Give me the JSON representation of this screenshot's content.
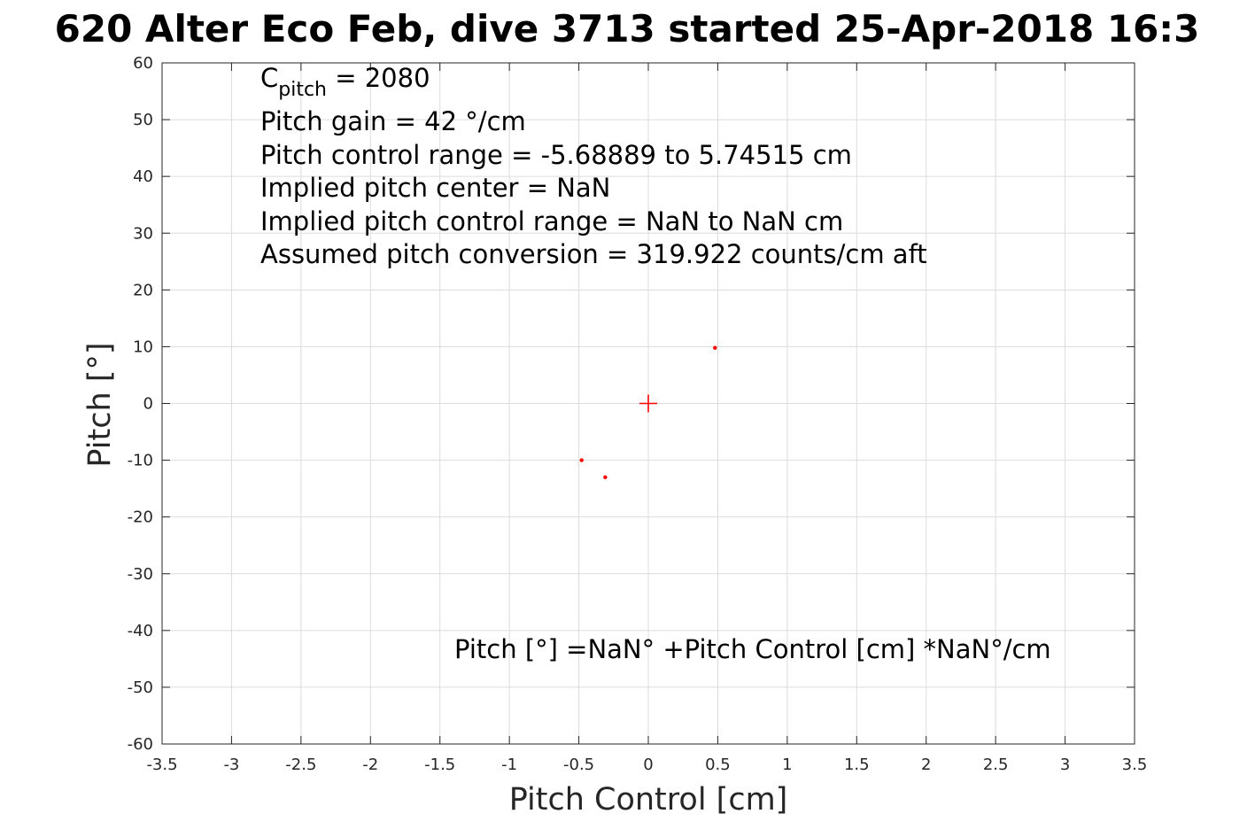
{
  "chart_data": {
    "type": "scatter",
    "title": "620 Alter Eco Feb, dive 3713 started 25-Apr-2018 16:3",
    "xlabel": "Pitch Control [cm]",
    "ylabel": "Pitch [°]",
    "xlim": [
      -3.5,
      3.5
    ],
    "ylim": [
      -60,
      60
    ],
    "xticks": [
      -3.5,
      -3,
      -2.5,
      -2,
      -1.5,
      -1,
      -0.5,
      0,
      0.5,
      1,
      1.5,
      2,
      2.5,
      3,
      3.5
    ],
    "yticks": [
      -60,
      -50,
      -40,
      -30,
      -20,
      -10,
      0,
      10,
      20,
      30,
      40,
      50,
      60
    ],
    "xtick_labels": [
      "-3.5",
      "-3",
      "-2.5",
      "-2",
      "-1.5",
      "-1",
      "-0.5",
      "0",
      "0.5",
      "1",
      "1.5",
      "2",
      "2.5",
      "3",
      "3.5"
    ],
    "ytick_labels": [
      "-60",
      "-50",
      "-40",
      "-30",
      "-20",
      "-10",
      "0",
      "10",
      "20",
      "30",
      "40",
      "50",
      "60"
    ],
    "grid": true,
    "series": [
      {
        "marker": "dot",
        "color": "#ff0000",
        "points": [
          {
            "x": 0.48,
            "y": 9.8
          },
          {
            "x": -0.48,
            "y": -10
          },
          {
            "x": -0.31,
            "y": -13
          }
        ]
      }
    ],
    "center_marker": {
      "marker": "plus",
      "color": "#ff0000",
      "x": 0,
      "y": 0
    },
    "annotations": {
      "c_pitch_main": "C",
      "c_pitch_sub": "pitch",
      "c_pitch_value": " = 2080",
      "lines": [
        "Pitch gain = 42 °/cm",
        "Pitch control range = -5.68889 to 5.74515 cm",
        "Implied pitch center = NaN",
        "Implied pitch control range = NaN to NaN cm",
        "Assumed pitch conversion = 319.922 counts/cm aft"
      ],
      "fit_equation": "Pitch [°] =NaN° +Pitch Control [cm] *NaN°/cm"
    }
  }
}
